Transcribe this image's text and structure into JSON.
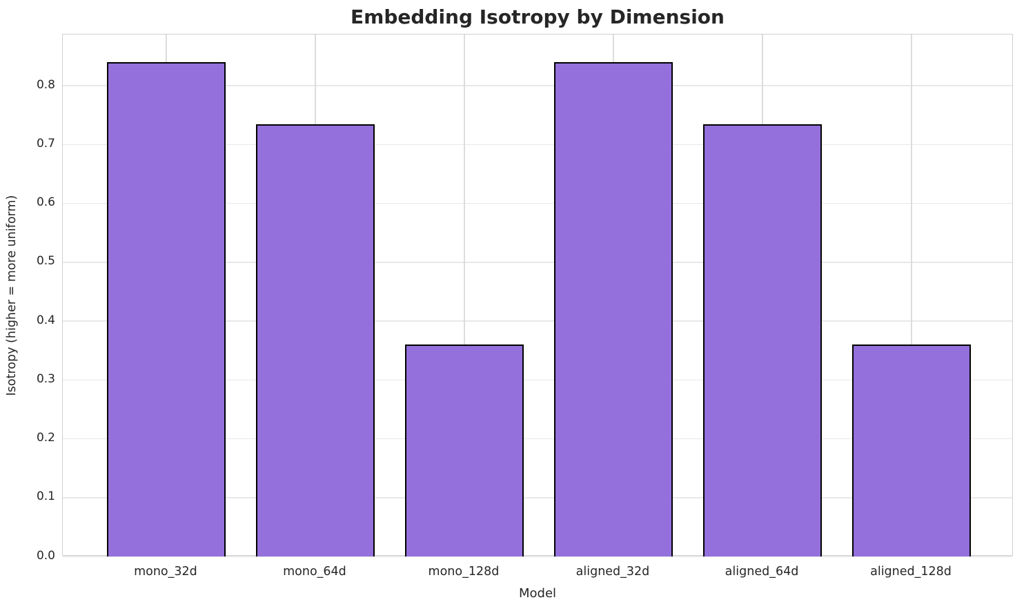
{
  "chart_data": {
    "type": "bar",
    "title": "Embedding Isotropy by Dimension",
    "xlabel": "Model",
    "ylabel": "Isotropy (higher = more uniform)",
    "categories": [
      "mono_32d",
      "mono_64d",
      "mono_128d",
      "aligned_32d",
      "aligned_64d",
      "aligned_128d"
    ],
    "values": [
      0.84,
      0.735,
      0.36,
      0.84,
      0.735,
      0.36
    ],
    "ylim": [
      0,
      0.887
    ],
    "yticks": [
      0.0,
      0.1,
      0.2,
      0.3,
      0.4,
      0.5,
      0.6,
      0.7,
      0.8
    ],
    "ytick_labels": [
      "0.0",
      "0.1",
      "0.2",
      "0.3",
      "0.4",
      "0.5",
      "0.6",
      "0.7",
      "0.8"
    ],
    "grid": true,
    "legend_position": "none",
    "bar_color": "#9370db",
    "bar_edge_color": "#000000",
    "gridline_color": "#e8e8e8",
    "background_color": "#ffffff",
    "text_color": "#262626"
  }
}
